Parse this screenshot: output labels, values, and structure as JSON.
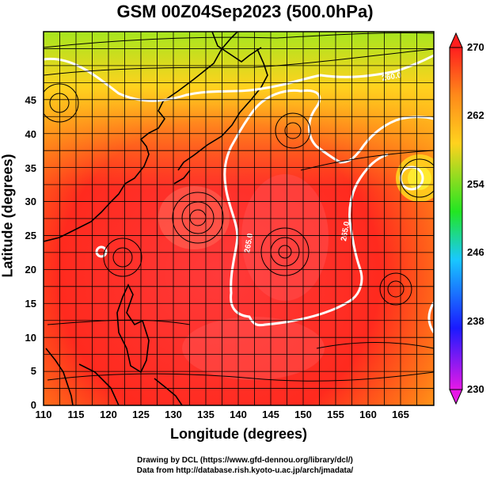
{
  "title": "GSM 00Z04Sep2023 (500.0hPa)",
  "xlabel": "Longitude (degrees)",
  "ylabel": "Latitude  (degrees)",
  "x_ticks": [
    "110",
    "115",
    "120",
    "125",
    "130",
    "135",
    "140",
    "145",
    "150",
    "155",
    "160",
    "165"
  ],
  "y_ticks": [
    "0",
    "5",
    "10",
    "15",
    "20",
    "25",
    "30",
    "35",
    "40",
    "45"
  ],
  "colorbar": {
    "ticks": [
      "230",
      "238",
      "246",
      "254",
      "262",
      "270"
    ],
    "colors": [
      "#e619e6",
      "#1a1aff",
      "#19c8ff",
      "#22e622",
      "#ffd21e",
      "#ff8a1a",
      "#ff1e1e"
    ]
  },
  "contour_labels": [
    "260.0",
    "265.0",
    "265.0"
  ],
  "credits": {
    "line1": "Drawing by DCL (https://www.gfd-dennou.org/library/dcl/)",
    "line2": "Data from http://database.rish.kyoto-u.ac.jp/arch/jmadata/"
  }
}
